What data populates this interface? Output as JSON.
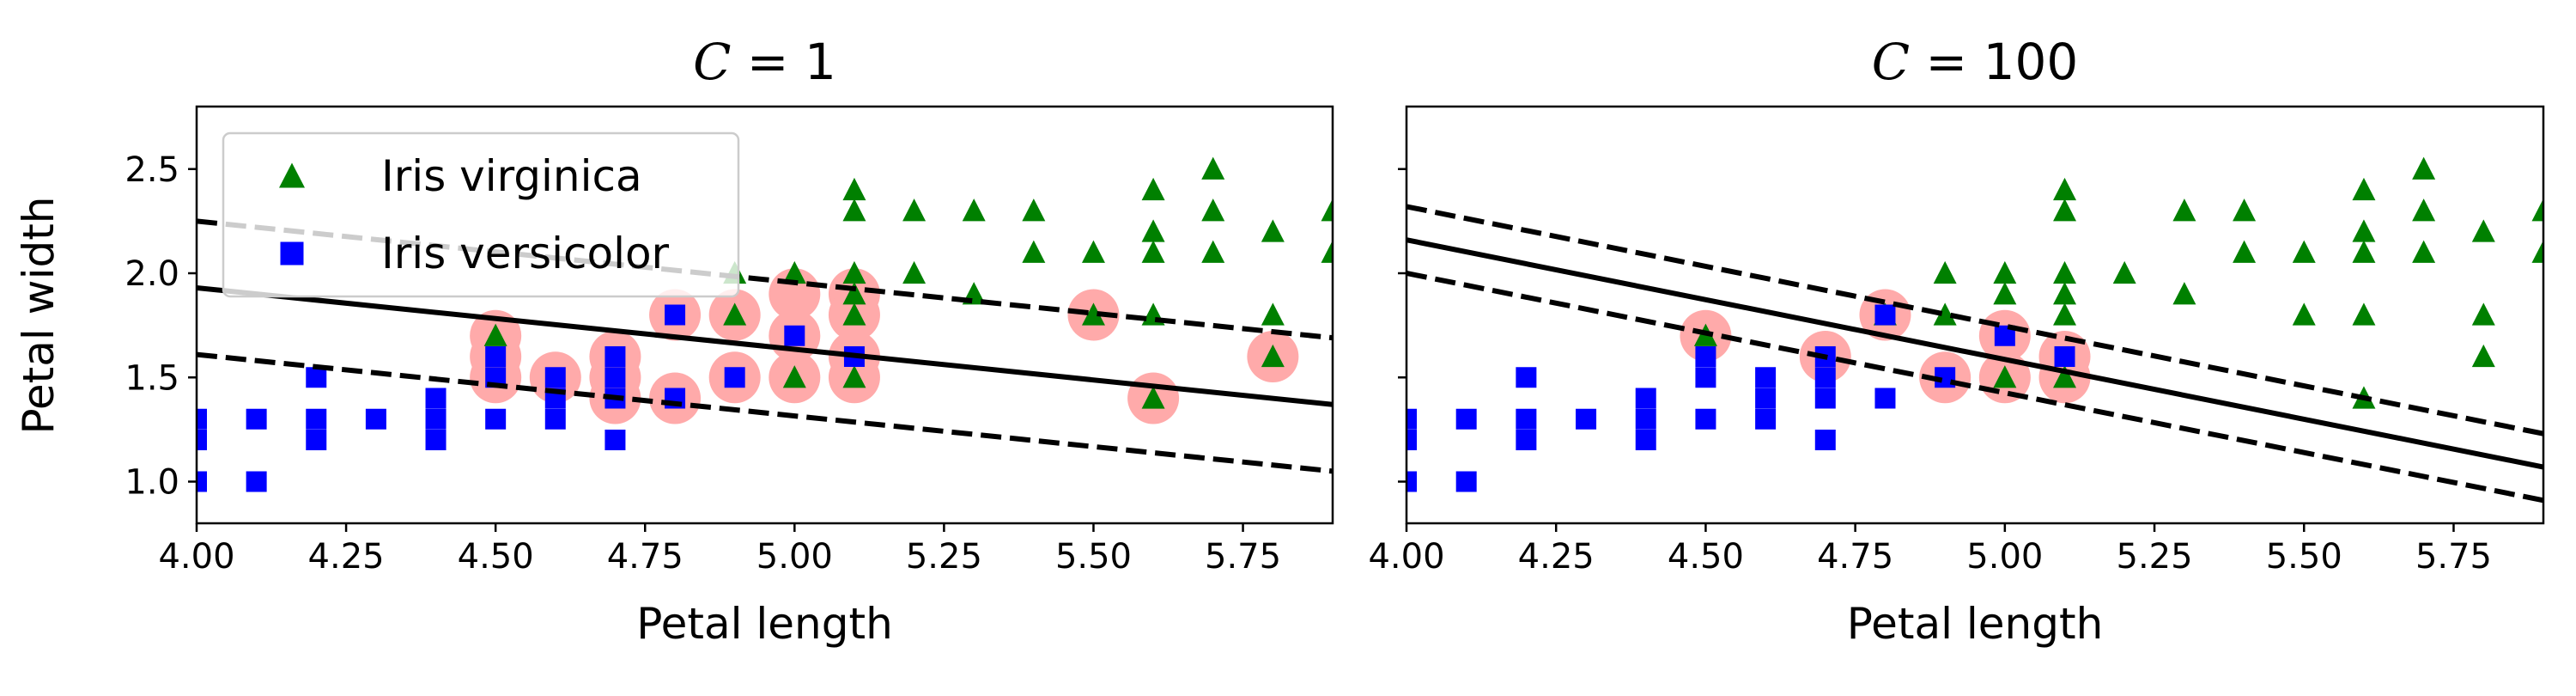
{
  "figure": {
    "ylabel_shared": "Petal width"
  },
  "chart_data": [
    {
      "type": "scatter",
      "title_prefix": "C",
      "title_value": "1",
      "xlabel": "Petal length",
      "ylabel": "Petal width",
      "xlim": [
        4.0,
        5.9
      ],
      "ylim": [
        0.8,
        2.8
      ],
      "xticks": [
        "4.00",
        "4.25",
        "4.50",
        "4.75",
        "5.00",
        "5.25",
        "5.50",
        "5.75"
      ],
      "yticks": [
        "1.0",
        "1.5",
        "2.0",
        "2.5"
      ],
      "legend": {
        "placement": "upper-left",
        "entries": [
          {
            "label": "Iris virginica",
            "marker": "triangle",
            "color": "#008000"
          },
          {
            "label": "Iris versicolor",
            "marker": "square",
            "color": "#0000ff"
          }
        ]
      },
      "decision_boundary": {
        "points": [
          [
            4.0,
            1.93
          ],
          [
            5.9,
            1.37
          ]
        ]
      },
      "margins": [
        {
          "points": [
            [
              4.0,
              2.25
            ],
            [
              5.9,
              1.69
            ]
          ]
        },
        {
          "points": [
            [
              4.0,
              1.61
            ],
            [
              5.9,
              1.05
            ]
          ]
        }
      ],
      "series": [
        {
          "name": "Iris virginica",
          "marker": "triangle",
          "color": "#008000",
          "points": [
            [
              4.5,
              1.7
            ],
            [
              4.9,
              2.0
            ],
            [
              4.9,
              1.8
            ],
            [
              5.0,
              2.0
            ],
            [
              5.0,
              1.5
            ],
            [
              5.1,
              2.4
            ],
            [
              5.1,
              2.3
            ],
            [
              5.1,
              2.0
            ],
            [
              5.1,
              1.9
            ],
            [
              5.1,
              1.8
            ],
            [
              5.1,
              1.5
            ],
            [
              5.2,
              2.3
            ],
            [
              5.2,
              2.0
            ],
            [
              5.3,
              2.3
            ],
            [
              5.3,
              1.9
            ],
            [
              5.4,
              2.3
            ],
            [
              5.4,
              2.1
            ],
            [
              5.5,
              2.1
            ],
            [
              5.5,
              1.8
            ],
            [
              5.6,
              2.4
            ],
            [
              5.6,
              2.2
            ],
            [
              5.6,
              2.1
            ],
            [
              5.6,
              1.8
            ],
            [
              5.6,
              1.4
            ],
            [
              5.7,
              2.5
            ],
            [
              5.7,
              2.3
            ],
            [
              5.7,
              2.1
            ],
            [
              5.8,
              2.2
            ],
            [
              5.8,
              1.8
            ],
            [
              5.8,
              1.6
            ],
            [
              5.9,
              2.3
            ],
            [
              5.9,
              2.1
            ]
          ]
        },
        {
          "name": "Iris versicolor",
          "marker": "square",
          "color": "#0000ff",
          "points": [
            [
              4.0,
              1.3
            ],
            [
              4.0,
              1.2
            ],
            [
              4.0,
              1.0
            ],
            [
              4.1,
              1.3
            ],
            [
              4.1,
              1.0
            ],
            [
              4.2,
              1.5
            ],
            [
              4.2,
              1.3
            ],
            [
              4.2,
              1.2
            ],
            [
              4.3,
              1.3
            ],
            [
              4.4,
              1.4
            ],
            [
              4.4,
              1.3
            ],
            [
              4.4,
              1.2
            ],
            [
              4.5,
              1.6
            ],
            [
              4.5,
              1.5
            ],
            [
              4.5,
              1.3
            ],
            [
              4.6,
              1.5
            ],
            [
              4.6,
              1.4
            ],
            [
              4.6,
              1.3
            ],
            [
              4.7,
              1.6
            ],
            [
              4.7,
              1.5
            ],
            [
              4.7,
              1.4
            ],
            [
              4.7,
              1.2
            ],
            [
              4.8,
              1.8
            ],
            [
              4.8,
              1.4
            ],
            [
              4.9,
              1.5
            ],
            [
              5.0,
              1.7
            ],
            [
              5.1,
              1.6
            ]
          ]
        }
      ],
      "support_vectors": {
        "color": "#ffaaaa",
        "points": [
          [
            4.5,
            1.7
          ],
          [
            4.5,
            1.6
          ],
          [
            4.5,
            1.5
          ],
          [
            4.6,
            1.5
          ],
          [
            4.7,
            1.6
          ],
          [
            4.7,
            1.5
          ],
          [
            4.7,
            1.4
          ],
          [
            4.8,
            1.8
          ],
          [
            4.8,
            1.4
          ],
          [
            4.9,
            1.8
          ],
          [
            4.9,
            1.5
          ],
          [
            5.0,
            1.9
          ],
          [
            5.0,
            1.7
          ],
          [
            5.0,
            1.5
          ],
          [
            5.1,
            1.9
          ],
          [
            5.1,
            1.8
          ],
          [
            5.1,
            1.6
          ],
          [
            5.1,
            1.5
          ],
          [
            5.5,
            1.8
          ],
          [
            5.6,
            1.4
          ],
          [
            5.8,
            1.6
          ]
        ]
      }
    },
    {
      "type": "scatter",
      "title_prefix": "C",
      "title_value": "100",
      "xlabel": "Petal length",
      "ylabel": "",
      "xlim": [
        4.0,
        5.9
      ],
      "ylim": [
        0.8,
        2.8
      ],
      "xticks": [
        "4.00",
        "4.25",
        "4.50",
        "4.75",
        "5.00",
        "5.25",
        "5.50",
        "5.75"
      ],
      "yticks": [],
      "decision_boundary": {
        "points": [
          [
            4.0,
            2.16
          ],
          [
            5.9,
            1.07
          ]
        ]
      },
      "margins": [
        {
          "points": [
            [
              4.0,
              2.32
            ],
            [
              5.9,
              1.23
            ]
          ]
        },
        {
          "points": [
            [
              4.0,
              2.0
            ],
            [
              5.9,
              0.91
            ]
          ]
        }
      ],
      "series": [
        {
          "name": "Iris virginica",
          "marker": "triangle",
          "color": "#008000",
          "points": [
            [
              4.5,
              1.7
            ],
            [
              4.8,
              1.8
            ],
            [
              4.9,
              2.0
            ],
            [
              4.9,
              1.8
            ],
            [
              5.0,
              2.0
            ],
            [
              5.0,
              1.9
            ],
            [
              5.0,
              1.5
            ],
            [
              5.1,
              2.4
            ],
            [
              5.1,
              2.3
            ],
            [
              5.1,
              2.0
            ],
            [
              5.1,
              1.9
            ],
            [
              5.1,
              1.8
            ],
            [
              5.1,
              1.5
            ],
            [
              5.2,
              2.0
            ],
            [
              5.3,
              2.3
            ],
            [
              5.3,
              1.9
            ],
            [
              5.4,
              2.3
            ],
            [
              5.4,
              2.1
            ],
            [
              5.5,
              2.1
            ],
            [
              5.5,
              1.8
            ],
            [
              5.6,
              2.4
            ],
            [
              5.6,
              2.2
            ],
            [
              5.6,
              2.1
            ],
            [
              5.6,
              1.8
            ],
            [
              5.6,
              1.4
            ],
            [
              5.7,
              2.5
            ],
            [
              5.7,
              2.3
            ],
            [
              5.7,
              2.1
            ],
            [
              5.8,
              2.2
            ],
            [
              5.8,
              1.8
            ],
            [
              5.8,
              1.6
            ],
            [
              5.9,
              2.3
            ],
            [
              5.9,
              2.1
            ]
          ]
        },
        {
          "name": "Iris versicolor",
          "marker": "square",
          "color": "#0000ff",
          "points": [
            [
              4.0,
              1.3
            ],
            [
              4.0,
              1.2
            ],
            [
              4.0,
              1.0
            ],
            [
              4.1,
              1.3
            ],
            [
              4.1,
              1.0
            ],
            [
              4.2,
              1.5
            ],
            [
              4.2,
              1.3
            ],
            [
              4.2,
              1.2
            ],
            [
              4.3,
              1.3
            ],
            [
              4.4,
              1.4
            ],
            [
              4.4,
              1.3
            ],
            [
              4.4,
              1.2
            ],
            [
              4.5,
              1.6
            ],
            [
              4.5,
              1.5
            ],
            [
              4.5,
              1.3
            ],
            [
              4.6,
              1.5
            ],
            [
              4.6,
              1.4
            ],
            [
              4.6,
              1.3
            ],
            [
              4.7,
              1.6
            ],
            [
              4.7,
              1.5
            ],
            [
              4.7,
              1.4
            ],
            [
              4.7,
              1.2
            ],
            [
              4.8,
              1.8
            ],
            [
              4.8,
              1.4
            ],
            [
              4.9,
              1.5
            ],
            [
              5.0,
              1.7
            ],
            [
              5.1,
              1.6
            ]
          ]
        }
      ],
      "support_vectors": {
        "color": "#ffaaaa",
        "points": [
          [
            4.5,
            1.7
          ],
          [
            4.7,
            1.6
          ],
          [
            4.8,
            1.8
          ],
          [
            4.9,
            1.5
          ],
          [
            5.0,
            1.7
          ],
          [
            5.0,
            1.5
          ],
          [
            5.1,
            1.6
          ],
          [
            5.1,
            1.5
          ]
        ]
      }
    }
  ]
}
